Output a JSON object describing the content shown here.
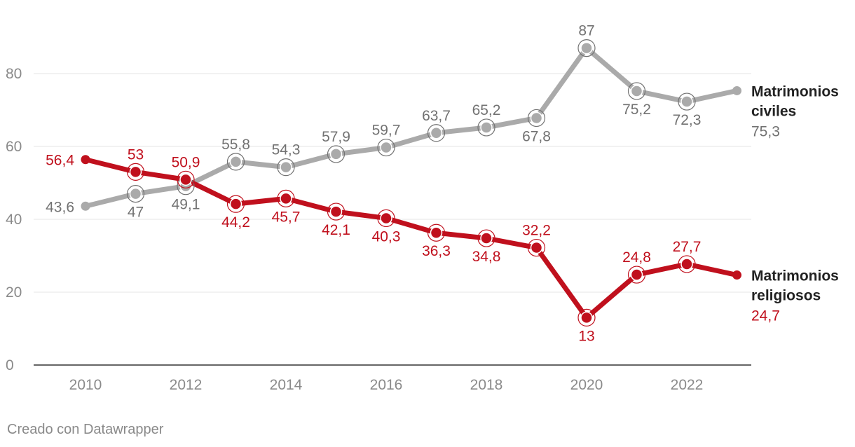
{
  "chart_data": {
    "type": "line",
    "title": "",
    "xlabel": "",
    "ylabel": "",
    "x": [
      2010,
      2011,
      2012,
      2013,
      2014,
      2015,
      2016,
      2017,
      2018,
      2019,
      2020,
      2021,
      2022,
      2023
    ],
    "x_ticks": [
      "2010",
      "2012",
      "2014",
      "2016",
      "2018",
      "2020",
      "2022"
    ],
    "y_ticks": [
      "0",
      "20",
      "40",
      "60",
      "80"
    ],
    "ylim": [
      0,
      90
    ],
    "grid": true,
    "series": [
      {
        "name": "Matrimonios civiles",
        "name_lines": [
          "Matrimonios",
          "civiles"
        ],
        "color": "#aaaaaa",
        "label_color": "#727272",
        "values": [
          43.6,
          47,
          49.1,
          55.8,
          54.3,
          57.9,
          59.7,
          63.7,
          65.2,
          67.8,
          87,
          75.2,
          72.3,
          75.3
        ],
        "labels": [
          "43,6",
          "47",
          "49,1",
          "55,8",
          "54,3",
          "57,9",
          "59,7",
          "63,7",
          "65,2",
          "67,8",
          "87",
          "75,2",
          "72,3",
          "75,3"
        ]
      },
      {
        "name": "Matrimonios religiosos",
        "name_lines": [
          "Matrimonios",
          "religiosos"
        ],
        "color": "#c0101d",
        "label_color": "#c0101d",
        "values": [
          56.4,
          53,
          50.9,
          44.2,
          45.7,
          42.1,
          40.3,
          36.3,
          34.8,
          32.2,
          13,
          24.8,
          27.7,
          24.7
        ],
        "labels": [
          "56,4",
          "53",
          "50,9",
          "44,2",
          "45,7",
          "42,1",
          "40,3",
          "36,3",
          "34,8",
          "32,2",
          "13",
          "24,8",
          "27,7",
          "24,7"
        ]
      }
    ]
  },
  "footer": {
    "credit": "Creado con Datawrapper"
  }
}
